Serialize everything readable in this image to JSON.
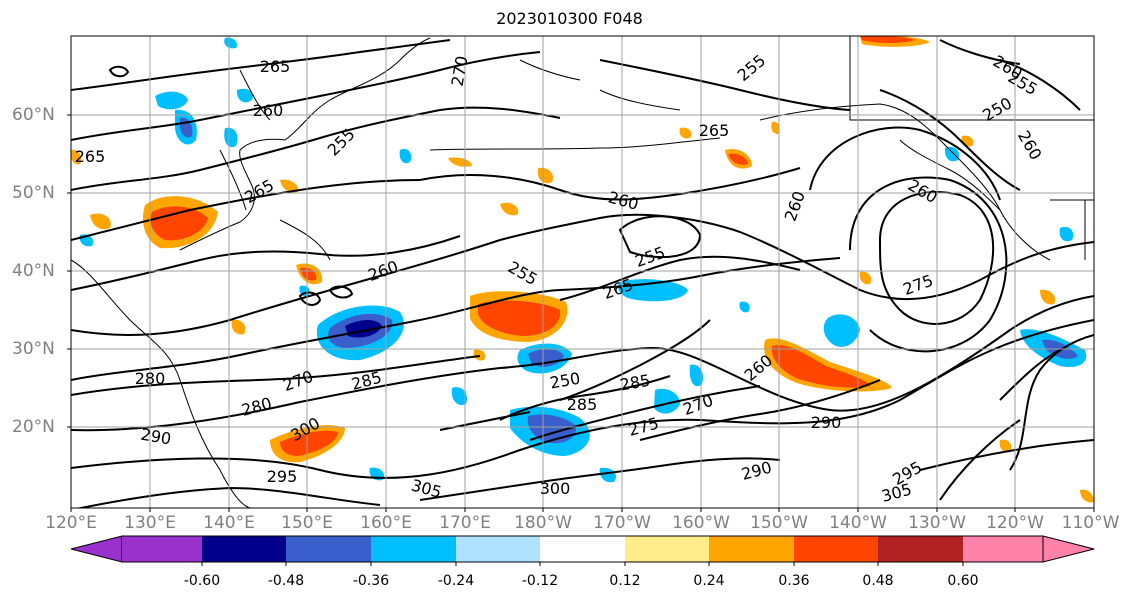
{
  "title": "2023010300 F048",
  "lon_labels": [
    "120°E",
    "130°E",
    "140°E",
    "150°E",
    "160°E",
    "170°E",
    "180°W",
    "170°W",
    "160°W",
    "150°W",
    "140°W",
    "130°W",
    "120°W",
    "110°W"
  ],
  "lat_labels": [
    "60°N",
    "50°N",
    "40°N",
    "30°N",
    "20°N"
  ],
  "contour_labels": [
    "265",
    "260",
    "255",
    "270",
    "255",
    "265",
    "255",
    "260",
    "250",
    "260",
    "265",
    "260",
    "265",
    "260",
    "255",
    "260",
    "255",
    "265",
    "260",
    "275",
    "270",
    "280",
    "285",
    "290",
    "295",
    "300",
    "305",
    "250",
    "285",
    "275",
    "280",
    "290",
    "270",
    "260",
    "285",
    "290",
    "295",
    "300",
    "305"
  ],
  "colorbar": {
    "tick_labels": [
      "-0.60",
      "-0.48",
      "-0.36",
      "-0.24",
      "-0.12",
      "0.12",
      "0.24",
      "0.36",
      "0.48",
      "0.60"
    ],
    "colors": [
      "#9932cc",
      "#00008b",
      "#3a5fcd",
      "#00bfff",
      "#b0e2ff",
      "#ffffff",
      "#ffec8b",
      "#ffa500",
      "#ff4500",
      "#b22222",
      "#ff82ab"
    ]
  },
  "colors": {
    "grid": "#a0a0a0",
    "contour": "#000000",
    "axis_text": "#808080"
  }
}
